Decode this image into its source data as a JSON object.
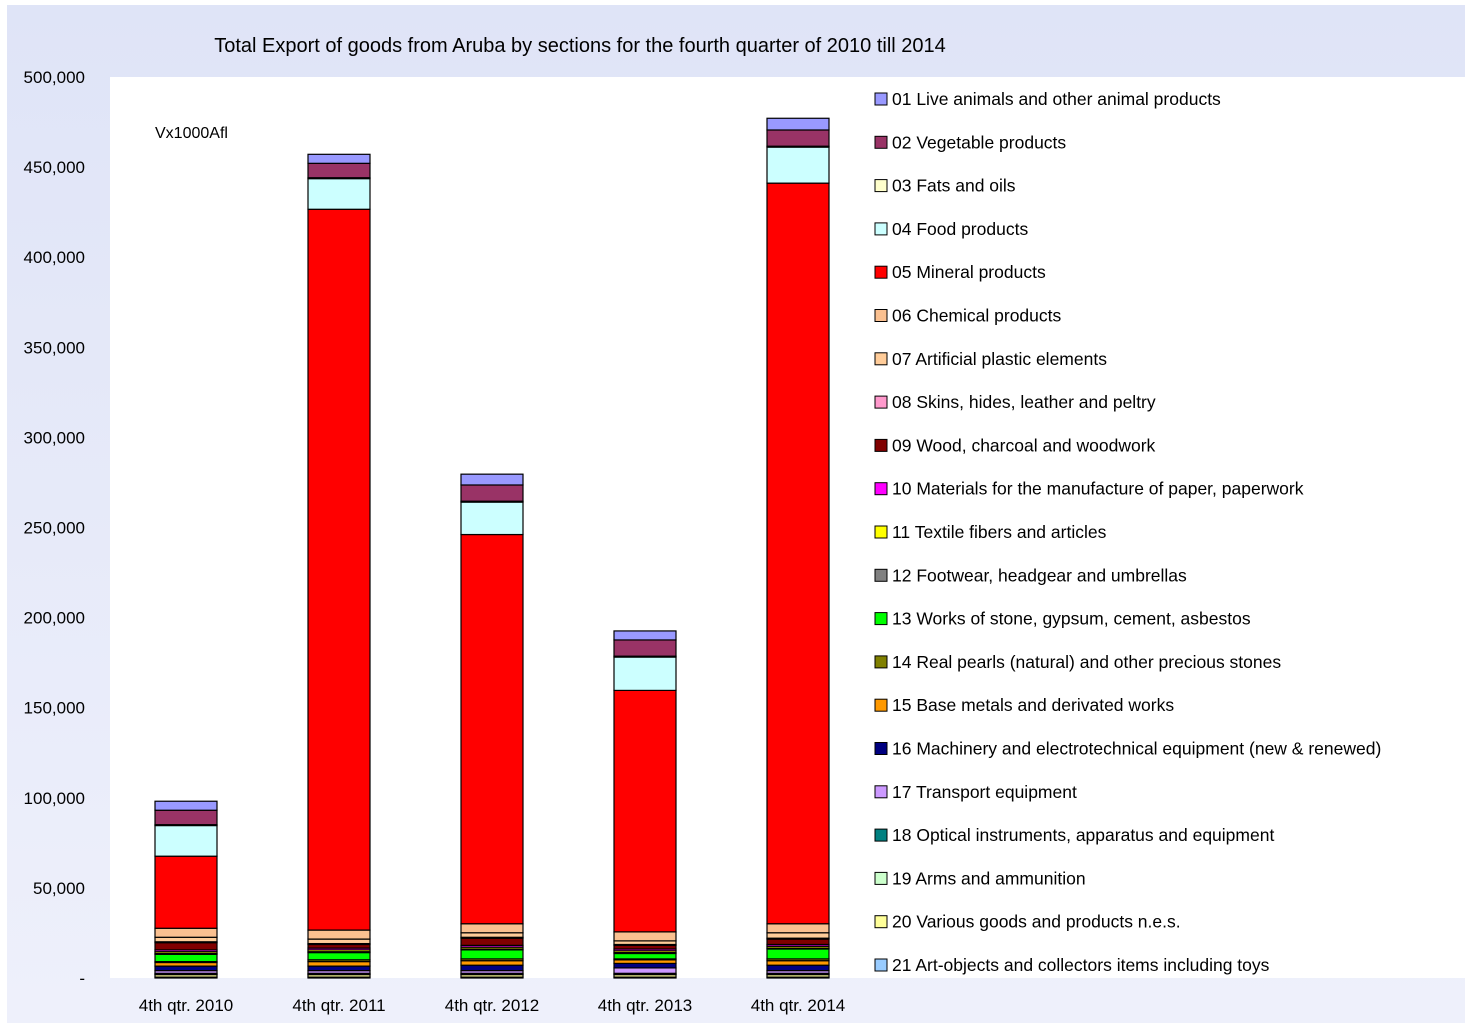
{
  "chart_data": {
    "type": "bar",
    "stacked": true,
    "title": "Total Export of goods from Aruba by sections for the fourth quarter of 2010 till 2014",
    "unit_label": "Vx1000Afl",
    "xlabel": "",
    "ylabel": "",
    "ylim": [
      0,
      500000
    ],
    "yticks": [
      0,
      50000,
      100000,
      150000,
      200000,
      250000,
      300000,
      350000,
      400000,
      450000,
      500000
    ],
    "ytick_labels": [
      "-",
      "50,000",
      "100,000",
      "150,000",
      "200,000",
      "250,000",
      "300,000",
      "350,000",
      "400,000",
      "450,000",
      "500,000"
    ],
    "grid": false,
    "legend_position": "right",
    "categories": [
      "4th qtr. 2010",
      "4th qtr. 2011",
      "4th qtr. 2012",
      "4th qtr. 2013",
      "4th qtr. 2014"
    ],
    "series": [
      {
        "name": "21 Art-objects and collectors items including toys",
        "color": "#99ccff",
        "values": [
          500,
          500,
          500,
          500,
          500
        ]
      },
      {
        "name": "20 Various goods and products n.e.s.",
        "color": "#ffff99",
        "values": [
          1500,
          1500,
          1500,
          1500,
          1500
        ]
      },
      {
        "name": "19 Arms and ammunition",
        "color": "#ccffcc",
        "values": [
          100,
          100,
          100,
          100,
          100
        ]
      },
      {
        "name": "18 Optical instruments, apparatus and equipment",
        "color": "#008080",
        "values": [
          500,
          500,
          500,
          500,
          500
        ]
      },
      {
        "name": "17 Transport equipment",
        "color": "#cc99ff",
        "values": [
          1500,
          1500,
          1500,
          3000,
          1500
        ]
      },
      {
        "name": "16 Machinery and electrotechnical equipment (new & renewed)",
        "color": "#000080",
        "values": [
          2500,
          2500,
          3000,
          2500,
          3000
        ]
      },
      {
        "name": "15 Base metals and derivated works",
        "color": "#ff9900",
        "values": [
          2000,
          2500,
          2500,
          2000,
          2500
        ]
      },
      {
        "name": "14 Real pearls (natural) and other precious stones",
        "color": "#808000",
        "values": [
          500,
          1000,
          1000,
          500,
          1000
        ]
      },
      {
        "name": "13 Works of stone, gypsum, cement, asbestos",
        "color": "#00ff00",
        "values": [
          4000,
          4000,
          5000,
          3000,
          5500
        ]
      },
      {
        "name": "12 Footwear, headgear and umbrellas",
        "color": "#808080",
        "values": [
          500,
          500,
          500,
          500,
          500
        ]
      },
      {
        "name": "11 Textile fibers and articles",
        "color": "#ffff00",
        "values": [
          1000,
          1000,
          1000,
          1000,
          1000
        ]
      },
      {
        "name": "10 Materials for the manufacture of paper, paperwork",
        "color": "#ff00ff",
        "values": [
          1000,
          1000,
          1000,
          1000,
          1000
        ]
      },
      {
        "name": "09 Wood, charcoal and woodwork",
        "color": "#800000",
        "values": [
          4000,
          2000,
          4000,
          2000,
          3000
        ]
      },
      {
        "name": "08 Skins, hides, leather and peltry",
        "color": "#ff99cc",
        "values": [
          500,
          500,
          500,
          500,
          500
        ]
      },
      {
        "name": "07 Artificial plastic elements",
        "color": "#ffcc99",
        "values": [
          2500,
          2500,
          2500,
          2000,
          3000
        ]
      },
      {
        "name": "06 Chemical products",
        "color": "#fac090",
        "values": [
          5000,
          5000,
          5000,
          5000,
          5000
        ]
      },
      {
        "name": "05 Mineral products",
        "color": "#ff0000",
        "values": [
          40000,
          400000,
          216000,
          134000,
          411000
        ]
      },
      {
        "name": "04 Food products",
        "color": "#ccffff",
        "values": [
          17000,
          17000,
          18000,
          18500,
          20000
        ]
      },
      {
        "name": "03 Fats and oils",
        "color": "#ffffcc",
        "values": [
          500,
          500,
          500,
          500,
          500
        ]
      },
      {
        "name": "02 Vegetable products",
        "color": "#993366",
        "values": [
          8000,
          8000,
          9000,
          9000,
          9000
        ]
      },
      {
        "name": "01 Live animals and other animal products",
        "color": "#9999ff",
        "values": [
          5000,
          5000,
          6000,
          5000,
          6500
        ]
      }
    ]
  }
}
